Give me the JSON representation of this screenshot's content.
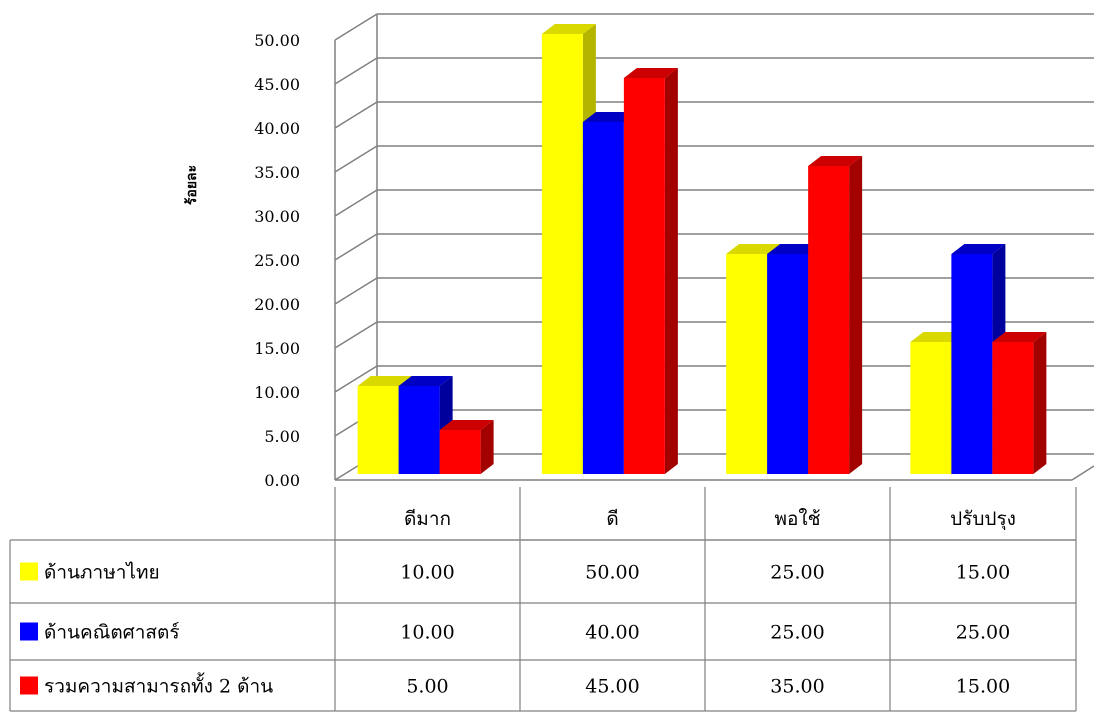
{
  "chart_data": {
    "type": "bar",
    "ylabel": "ร้อยละ",
    "ylim": [
      0,
      50
    ],
    "yticks": [
      "0.00",
      "5.00",
      "10.00",
      "15.00",
      "20.00",
      "25.00",
      "30.00",
      "35.00",
      "40.00",
      "45.00",
      "50.00"
    ],
    "categories": [
      "ดีมาก",
      "ดี",
      "พอใช้",
      "ปรับปรุง"
    ],
    "grid": true,
    "legend": "table-left",
    "series": [
      {
        "name": "ด้านภาษาไทย",
        "color": "#ffff00",
        "side": "#b5b500",
        "top": "#d9d900",
        "values": [
          10,
          50,
          25,
          15
        ],
        "labels": [
          "10.00",
          "50.00",
          "25.00",
          "15.00"
        ]
      },
      {
        "name": "ด้านคณิตศาสตร์",
        "color": "#0000ff",
        "side": "#00009c",
        "top": "#0000c4",
        "values": [
          10,
          40,
          25,
          25
        ],
        "labels": [
          "10.00",
          "40.00",
          "25.00",
          "25.00"
        ]
      },
      {
        "name": "รวมความสามารถทั้ง 2 ด้าน",
        "color": "#ff0000",
        "side": "#a30000",
        "top": "#cc0000",
        "values": [
          5,
          45,
          35,
          15
        ],
        "labels": [
          "5.00",
          "45.00",
          "35.00",
          "15.00"
        ]
      }
    ]
  }
}
